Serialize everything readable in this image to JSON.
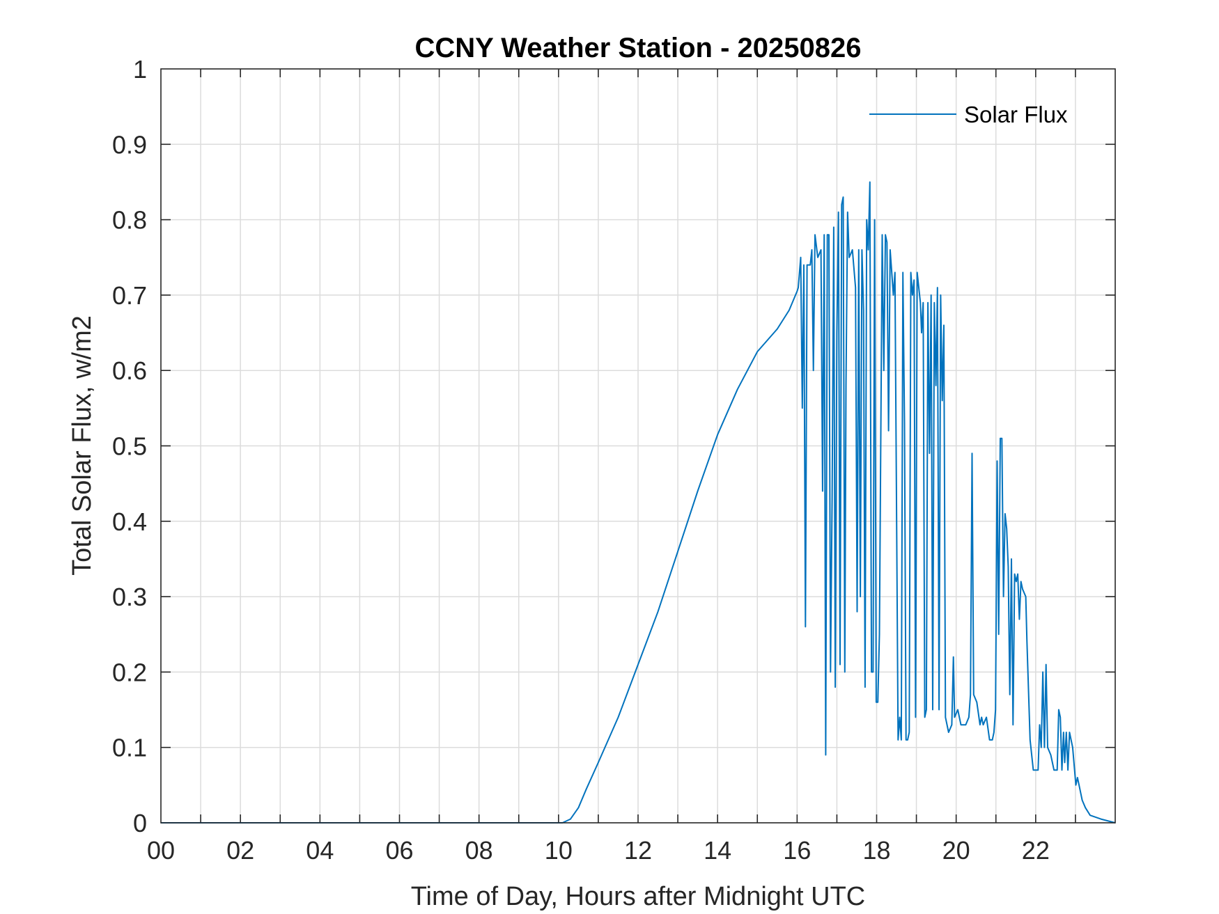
{
  "chart_data": {
    "type": "line",
    "title": "CCNY Weather Station - 20250826",
    "xlabel": "Time of Day, Hours after Midnight UTC",
    "ylabel": "Total Solar Flux, w/m2",
    "xlim": [
      0,
      24
    ],
    "ylim": [
      0,
      1
    ],
    "grid": true,
    "legend_position": "top-right",
    "x_ticks": [
      0,
      2,
      4,
      6,
      8,
      10,
      12,
      14,
      16,
      18,
      20,
      22
    ],
    "x_tick_labels": [
      "00",
      "02",
      "04",
      "06",
      "08",
      "10",
      "12",
      "14",
      "16",
      "18",
      "20",
      "22"
    ],
    "y_ticks": [
      0,
      0.1,
      0.2,
      0.3,
      0.4,
      0.5,
      0.6,
      0.7,
      0.8,
      0.9,
      1
    ],
    "y_tick_labels": [
      "0",
      "0.1",
      "0.2",
      "0.3",
      "0.4",
      "0.5",
      "0.6",
      "0.7",
      "0.8",
      "0.9",
      "1"
    ],
    "series": [
      {
        "name": "Solar Flux",
        "color": "#0072BD",
        "points": [
          [
            0,
            0
          ],
          [
            10.1,
            0
          ],
          [
            10.3,
            0.005
          ],
          [
            10.5,
            0.02
          ],
          [
            10.7,
            0.045
          ],
          [
            11,
            0.08
          ],
          [
            11.5,
            0.14
          ],
          [
            12,
            0.21
          ],
          [
            12.5,
            0.28
          ],
          [
            13,
            0.36
          ],
          [
            13.5,
            0.44
          ],
          [
            14,
            0.515
          ],
          [
            14.5,
            0.575
          ],
          [
            15,
            0.625
          ],
          [
            15.5,
            0.655
          ],
          [
            15.8,
            0.68
          ],
          [
            16.0,
            0.705
          ],
          [
            16.03,
            0.71
          ],
          [
            16.09,
            0.75
          ],
          [
            16.13,
            0.55
          ],
          [
            16.17,
            0.74
          ],
          [
            16.21,
            0.26
          ],
          [
            16.25,
            0.74
          ],
          [
            16.33,
            0.74
          ],
          [
            16.37,
            0.76
          ],
          [
            16.41,
            0.6
          ],
          [
            16.45,
            0.78
          ],
          [
            16.52,
            0.75
          ],
          [
            16.6,
            0.76
          ],
          [
            16.64,
            0.44
          ],
          [
            16.68,
            0.78
          ],
          [
            16.72,
            0.09
          ],
          [
            16.76,
            0.78
          ],
          [
            16.8,
            0.78
          ],
          [
            16.84,
            0.2
          ],
          [
            16.88,
            0.43
          ],
          [
            16.92,
            0.79
          ],
          [
            16.96,
            0.18
          ],
          [
            17.0,
            0.65
          ],
          [
            17.04,
            0.81
          ],
          [
            17.08,
            0.21
          ],
          [
            17.12,
            0.82
          ],
          [
            17.16,
            0.83
          ],
          [
            17.2,
            0.2
          ],
          [
            17.23,
            0.58
          ],
          [
            17.27,
            0.81
          ],
          [
            17.31,
            0.75
          ],
          [
            17.39,
            0.76
          ],
          [
            17.47,
            0.71
          ],
          [
            17.51,
            0.28
          ],
          [
            17.55,
            0.76
          ],
          [
            17.59,
            0.3
          ],
          [
            17.63,
            0.76
          ],
          [
            17.67,
            0.68
          ],
          [
            17.71,
            0.18
          ],
          [
            17.75,
            0.8
          ],
          [
            17.79,
            0.76
          ],
          [
            17.83,
            0.85
          ],
          [
            17.87,
            0.2
          ],
          [
            17.91,
            0.2
          ],
          [
            17.95,
            0.8
          ],
          [
            17.99,
            0.16
          ],
          [
            18.03,
            0.16
          ],
          [
            18.07,
            0.25
          ],
          [
            18.14,
            0.78
          ],
          [
            18.18,
            0.6
          ],
          [
            18.22,
            0.78
          ],
          [
            18.26,
            0.77
          ],
          [
            18.3,
            0.52
          ],
          [
            18.34,
            0.76
          ],
          [
            18.42,
            0.7
          ],
          [
            18.46,
            0.73
          ],
          [
            18.54,
            0.11
          ],
          [
            18.58,
            0.14
          ],
          [
            18.62,
            0.11
          ],
          [
            18.66,
            0.73
          ],
          [
            18.7,
            0.53
          ],
          [
            18.74,
            0.11
          ],
          [
            18.78,
            0.11
          ],
          [
            18.82,
            0.12
          ],
          [
            18.86,
            0.73
          ],
          [
            18.9,
            0.7
          ],
          [
            18.94,
            0.72
          ],
          [
            18.98,
            0.14
          ],
          [
            19.02,
            0.73
          ],
          [
            19.1,
            0.69
          ],
          [
            19.13,
            0.65
          ],
          [
            19.17,
            0.69
          ],
          [
            19.21,
            0.14
          ],
          [
            19.25,
            0.15
          ],
          [
            19.29,
            0.69
          ],
          [
            19.33,
            0.49
          ],
          [
            19.37,
            0.7
          ],
          [
            19.41,
            0.15
          ],
          [
            19.45,
            0.69
          ],
          [
            19.49,
            0.58
          ],
          [
            19.53,
            0.71
          ],
          [
            19.57,
            0.15
          ],
          [
            19.61,
            0.7
          ],
          [
            19.65,
            0.56
          ],
          [
            19.69,
            0.66
          ],
          [
            19.73,
            0.14
          ],
          [
            19.81,
            0.12
          ],
          [
            19.89,
            0.13
          ],
          [
            19.93,
            0.22
          ],
          [
            19.96,
            0.14
          ],
          [
            20.04,
            0.15
          ],
          [
            20.12,
            0.13
          ],
          [
            20.24,
            0.13
          ],
          [
            20.32,
            0.14
          ],
          [
            20.36,
            0.17
          ],
          [
            20.4,
            0.49
          ],
          [
            20.44,
            0.17
          ],
          [
            20.52,
            0.16
          ],
          [
            20.6,
            0.13
          ],
          [
            20.64,
            0.14
          ],
          [
            20.68,
            0.13
          ],
          [
            20.76,
            0.14
          ],
          [
            20.84,
            0.11
          ],
          [
            20.91,
            0.11
          ],
          [
            20.95,
            0.12
          ],
          [
            20.99,
            0.15
          ],
          [
            21.03,
            0.48
          ],
          [
            21.07,
            0.25
          ],
          [
            21.11,
            0.51
          ],
          [
            21.15,
            0.51
          ],
          [
            21.19,
            0.3
          ],
          [
            21.23,
            0.41
          ],
          [
            21.27,
            0.39
          ],
          [
            21.31,
            0.34
          ],
          [
            21.35,
            0.17
          ],
          [
            21.39,
            0.35
          ],
          [
            21.43,
            0.13
          ],
          [
            21.47,
            0.33
          ],
          [
            21.51,
            0.32
          ],
          [
            21.55,
            0.33
          ],
          [
            21.59,
            0.27
          ],
          [
            21.63,
            0.32
          ],
          [
            21.67,
            0.31
          ],
          [
            21.75,
            0.3
          ],
          [
            21.78,
            0.24
          ],
          [
            21.86,
            0.11
          ],
          [
            21.94,
            0.07
          ],
          [
            22.02,
            0.07
          ],
          [
            22.06,
            0.07
          ],
          [
            22.1,
            0.13
          ],
          [
            22.14,
            0.1
          ],
          [
            22.18,
            0.2
          ],
          [
            22.22,
            0.1
          ],
          [
            22.26,
            0.21
          ],
          [
            22.3,
            0.1
          ],
          [
            22.38,
            0.09
          ],
          [
            22.46,
            0.07
          ],
          [
            22.54,
            0.07
          ],
          [
            22.58,
            0.15
          ],
          [
            22.62,
            0.14
          ],
          [
            22.66,
            0.07
          ],
          [
            22.7,
            0.12
          ],
          [
            22.73,
            0.08
          ],
          [
            22.77,
            0.12
          ],
          [
            22.81,
            0.07
          ],
          [
            22.85,
            0.12
          ],
          [
            22.93,
            0.1
          ],
          [
            23.01,
            0.05
          ],
          [
            23.05,
            0.06
          ],
          [
            23.09,
            0.05
          ],
          [
            23.17,
            0.03
          ],
          [
            23.25,
            0.02
          ],
          [
            23.37,
            0.01
          ],
          [
            23.64,
            0.005
          ],
          [
            24.0,
            0
          ]
        ]
      }
    ]
  }
}
